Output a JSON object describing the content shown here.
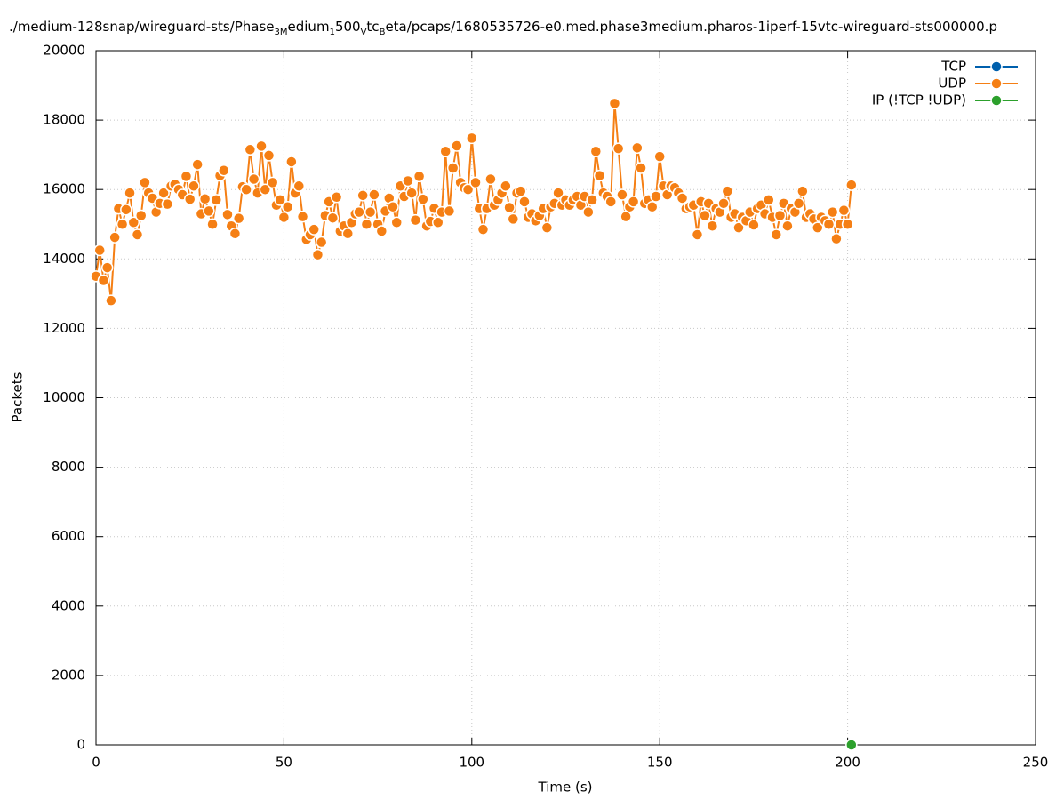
{
  "chart_data": {
    "type": "line",
    "title": [
      {
        "text": "./medium-128snap/wireguard-sts/Phase",
        "sub": false
      },
      {
        "text": "3M",
        "sub": true
      },
      {
        "text": "edium",
        "sub": false
      },
      {
        "text": "1",
        "sub": true
      },
      {
        "text": "500",
        "sub": false
      },
      {
        "text": "V",
        "sub": true
      },
      {
        "text": "tc",
        "sub": false
      },
      {
        "text": "B",
        "sub": true
      },
      {
        "text": "eta/pcaps/1680535726-e0.med.phase3medium.pharos-1iperf-15vtc-wireguard-sts000000.p",
        "sub": false
      }
    ],
    "x_label": "Time (s)",
    "y_label": "Packets",
    "xlim": [
      0,
      250
    ],
    "xticks": [
      0,
      50,
      100,
      150,
      200,
      250
    ],
    "ylim": [
      0,
      20000
    ],
    "yticks": [
      0,
      2000,
      4000,
      6000,
      8000,
      10000,
      12000,
      14000,
      16000,
      18000,
      20000
    ],
    "grid": true,
    "legend": "top-right",
    "series": [
      {
        "name": "TCP",
        "color": "#0060ad",
        "x": [],
        "values": []
      },
      {
        "name": "UDP",
        "color": "#f57f14",
        "x": [
          0,
          1,
          2,
          3,
          4,
          5,
          6,
          7,
          8,
          9,
          10,
          11,
          12,
          13,
          14,
          15,
          16,
          17,
          18,
          19,
          20,
          21,
          22,
          23,
          24,
          25,
          26,
          27,
          28,
          29,
          30,
          31,
          32,
          33,
          34,
          35,
          36,
          37,
          38,
          39,
          40,
          41,
          42,
          43,
          44,
          45,
          46,
          47,
          48,
          49,
          50,
          51,
          52,
          53,
          54,
          55,
          56,
          57,
          58,
          59,
          60,
          61,
          62,
          63,
          64,
          65,
          66,
          67,
          68,
          69,
          70,
          71,
          72,
          73,
          74,
          75,
          76,
          77,
          78,
          79,
          80,
          81,
          82,
          83,
          84,
          85,
          86,
          87,
          88,
          89,
          90,
          91,
          92,
          93,
          94,
          95,
          96,
          97,
          98,
          99,
          100,
          101,
          102,
          103,
          104,
          105,
          106,
          107,
          108,
          109,
          110,
          111,
          112,
          113,
          114,
          115,
          116,
          117,
          118,
          119,
          120,
          121,
          122,
          123,
          124,
          125,
          126,
          127,
          128,
          129,
          130,
          131,
          132,
          133,
          134,
          135,
          136,
          137,
          138,
          139,
          140,
          141,
          142,
          143,
          144,
          145,
          146,
          147,
          148,
          149,
          150,
          151,
          152,
          153,
          154,
          155,
          156,
          157,
          158,
          159,
          160,
          161,
          162,
          163,
          164,
          165,
          166,
          167,
          168,
          169,
          170,
          171,
          172,
          173,
          174,
          175,
          176,
          177,
          178,
          179,
          180,
          181,
          182,
          183,
          184,
          185,
          186,
          187,
          188,
          189,
          190,
          191,
          192,
          193,
          194,
          195,
          196,
          197,
          198,
          199,
          200,
          201
        ],
        "values": [
          13500,
          14250,
          13380,
          13750,
          12800,
          14620,
          15450,
          15000,
          15420,
          15900,
          15050,
          14700,
          15250,
          16200,
          15900,
          15750,
          15350,
          15600,
          15900,
          15580,
          16100,
          16150,
          16000,
          15850,
          16380,
          15720,
          16100,
          16720,
          15300,
          15730,
          15380,
          15000,
          15700,
          16400,
          16550,
          15280,
          14950,
          14730,
          15170,
          16080,
          16000,
          17150,
          16300,
          15900,
          17250,
          16000,
          16980,
          16200,
          15550,
          15700,
          15200,
          15500,
          16800,
          15900,
          16100,
          15220,
          14560,
          14700,
          14850,
          14120,
          14480,
          15250,
          15650,
          15180,
          15780,
          14800,
          14950,
          14730,
          15050,
          15300,
          15350,
          15830,
          15000,
          15350,
          15850,
          15000,
          14800,
          15380,
          15750,
          15500,
          15050,
          16100,
          15800,
          16250,
          15900,
          15120,
          16380,
          15720,
          14950,
          15080,
          15460,
          15050,
          15350,
          17100,
          15380,
          16620,
          17260,
          16200,
          16050,
          16000,
          17480,
          16200,
          15450,
          14850,
          15450,
          16300,
          15550,
          15700,
          15900,
          16100,
          15480,
          15150,
          15900,
          15950,
          15650,
          15200,
          15300,
          15100,
          15250,
          15450,
          14900,
          15500,
          15600,
          15900,
          15550,
          15700,
          15550,
          15700,
          15800,
          15550,
          15800,
          15350,
          15700,
          17100,
          16400,
          15900,
          15800,
          15650,
          18480,
          17180,
          15850,
          15220,
          15500,
          15650,
          17200,
          16620,
          15600,
          15700,
          15500,
          15800,
          16950,
          16100,
          15850,
          16100,
          16050,
          15900,
          15750,
          15450,
          15500,
          15550,
          14700,
          15650,
          15250,
          15600,
          14950,
          15450,
          15350,
          15600,
          15950,
          15200,
          15300,
          14900,
          15200,
          15100,
          15350,
          14980,
          15450,
          15550,
          15300,
          15700,
          15200,
          14700,
          15250,
          15600,
          14950,
          15450,
          15350,
          15600,
          15950,
          15200,
          15300,
          15150,
          14900,
          15200,
          15100,
          15000,
          15350,
          14580,
          15000,
          15400,
          15000,
          16130
        ]
      },
      {
        "name": "IP (!TCP  !UDP)",
        "color": "#2ca02c",
        "x": [
          201
        ],
        "values": [
          0
        ]
      }
    ]
  }
}
